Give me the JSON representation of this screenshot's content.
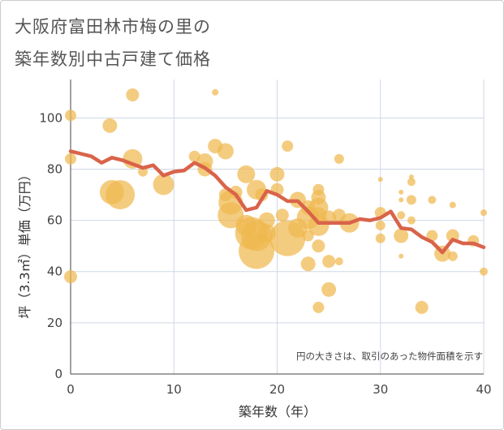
{
  "title_line1": "大阪府富田林市梅の里の",
  "title_line2": "築年数別中古戸建て価格",
  "chart_data": {
    "type": "scatter",
    "xlabel": "築年数（年）",
    "ylabel": "坪（3.3㎡）単価（万円）",
    "xlim": [
      0,
      40
    ],
    "ylim": [
      0,
      115
    ],
    "xticks": [
      "0",
      "10",
      "20",
      "30",
      "40"
    ],
    "yticks": [
      "0",
      "20",
      "40",
      "60",
      "80",
      "100"
    ],
    "grid": true,
    "note": "円の大きさは、取引のあった物件面積を示す",
    "bubble_color": "#f0b94f",
    "line_color": "#d9634a",
    "bubbles": [
      {
        "x": 0,
        "y": 101,
        "s": 7
      },
      {
        "x": 0,
        "y": 84,
        "s": 7
      },
      {
        "x": 0,
        "y": 38,
        "s": 8
      },
      {
        "x": 3.8,
        "y": 97,
        "s": 9
      },
      {
        "x": 6,
        "y": 109,
        "s": 8
      },
      {
        "x": 6,
        "y": 84,
        "s": 12
      },
      {
        "x": 7,
        "y": 79,
        "s": 6
      },
      {
        "x": 4,
        "y": 71,
        "s": 15
      },
      {
        "x": 4.8,
        "y": 70,
        "s": 18
      },
      {
        "x": 9,
        "y": 74,
        "s": 13
      },
      {
        "x": 12,
        "y": 85,
        "s": 7
      },
      {
        "x": 13,
        "y": 83,
        "s": 10
      },
      {
        "x": 13,
        "y": 80,
        "s": 9
      },
      {
        "x": 14,
        "y": 110,
        "s": 4
      },
      {
        "x": 14,
        "y": 89,
        "s": 9
      },
      {
        "x": 15,
        "y": 87,
        "s": 10
      },
      {
        "x": 15,
        "y": 70,
        "s": 8
      },
      {
        "x": 15.5,
        "y": 67,
        "s": 15
      },
      {
        "x": 15.5,
        "y": 62,
        "s": 16
      },
      {
        "x": 16,
        "y": 71,
        "s": 8
      },
      {
        "x": 17,
        "y": 78,
        "s": 11
      },
      {
        "x": 17,
        "y": 58,
        "s": 13
      },
      {
        "x": 17.5,
        "y": 55,
        "s": 20
      },
      {
        "x": 18,
        "y": 54,
        "s": 19
      },
      {
        "x": 18,
        "y": 48,
        "s": 22
      },
      {
        "x": 18,
        "y": 72,
        "s": 12
      },
      {
        "x": 18.5,
        "y": 70,
        "s": 8
      },
      {
        "x": 19,
        "y": 60,
        "s": 10
      },
      {
        "x": 19,
        "y": 55,
        "s": 11
      },
      {
        "x": 20,
        "y": 78,
        "s": 9
      },
      {
        "x": 20,
        "y": 72,
        "s": 8
      },
      {
        "x": 20.5,
        "y": 62,
        "s": 8
      },
      {
        "x": 21,
        "y": 89,
        "s": 7
      },
      {
        "x": 21,
        "y": 53,
        "s": 22
      },
      {
        "x": 22,
        "y": 68,
        "s": 10
      },
      {
        "x": 22,
        "y": 57,
        "s": 12
      },
      {
        "x": 23,
        "y": 65,
        "s": 9
      },
      {
        "x": 23,
        "y": 61,
        "s": 14
      },
      {
        "x": 23,
        "y": 54,
        "s": 7
      },
      {
        "x": 23,
        "y": 43,
        "s": 9
      },
      {
        "x": 24,
        "y": 72,
        "s": 7
      },
      {
        "x": 24,
        "y": 69,
        "s": 9
      },
      {
        "x": 24,
        "y": 65,
        "s": 12
      },
      {
        "x": 24,
        "y": 62,
        "s": 10
      },
      {
        "x": 24,
        "y": 58,
        "s": 13
      },
      {
        "x": 24,
        "y": 50,
        "s": 8
      },
      {
        "x": 24,
        "y": 26,
        "s": 7
      },
      {
        "x": 25,
        "y": 44,
        "s": 8
      },
      {
        "x": 25,
        "y": 33,
        "s": 9
      },
      {
        "x": 25,
        "y": 61,
        "s": 9
      },
      {
        "x": 26,
        "y": 84,
        "s": 6
      },
      {
        "x": 26,
        "y": 62,
        "s": 8
      },
      {
        "x": 26,
        "y": 44,
        "s": 5
      },
      {
        "x": 27,
        "y": 59,
        "s": 12
      },
      {
        "x": 30,
        "y": 76,
        "s": 3
      },
      {
        "x": 30,
        "y": 63,
        "s": 7
      },
      {
        "x": 30,
        "y": 58,
        "s": 6
      },
      {
        "x": 30,
        "y": 53,
        "s": 6
      },
      {
        "x": 32,
        "y": 71,
        "s": 3
      },
      {
        "x": 32,
        "y": 68,
        "s": 3
      },
      {
        "x": 32,
        "y": 62,
        "s": 5
      },
      {
        "x": 32,
        "y": 54,
        "s": 9
      },
      {
        "x": 32,
        "y": 46,
        "s": 3
      },
      {
        "x": 33,
        "y": 77,
        "s": 3
      },
      {
        "x": 33,
        "y": 75,
        "s": 5
      },
      {
        "x": 33,
        "y": 68,
        "s": 6
      },
      {
        "x": 33,
        "y": 60,
        "s": 5
      },
      {
        "x": 34,
        "y": 26,
        "s": 8
      },
      {
        "x": 35,
        "y": 68,
        "s": 5
      },
      {
        "x": 35,
        "y": 54,
        "s": 7
      },
      {
        "x": 36,
        "y": 47,
        "s": 10
      },
      {
        "x": 37,
        "y": 66,
        "s": 4
      },
      {
        "x": 37,
        "y": 54,
        "s": 8
      },
      {
        "x": 37,
        "y": 46,
        "s": 6
      },
      {
        "x": 39,
        "y": 52,
        "s": 7
      },
      {
        "x": 40,
        "y": 63,
        "s": 4
      },
      {
        "x": 40,
        "y": 40,
        "s": 5
      }
    ],
    "trend_x": [
      0,
      1,
      2,
      3,
      4,
      5,
      6,
      7,
      8,
      9,
      10,
      11,
      12,
      13,
      14,
      15,
      16,
      17,
      18,
      19,
      20,
      21,
      22,
      23,
      24,
      25,
      26,
      27,
      28,
      29,
      30,
      31,
      32,
      33,
      34,
      35,
      36,
      37,
      38,
      39,
      40
    ],
    "trend_y": [
      87,
      86,
      85,
      82.5,
      84.5,
      83.5,
      82,
      80.5,
      81.5,
      77.5,
      79,
      79.5,
      82.5,
      80.5,
      77.5,
      73,
      70,
      64,
      65,
      71.5,
      70,
      67.5,
      67.5,
      63.5,
      59,
      59,
      59,
      59,
      60.5,
      60,
      61,
      63.5,
      57,
      56.5,
      53.5,
      51.5,
      47.5,
      52.5,
      51,
      51,
      49.5
    ]
  }
}
